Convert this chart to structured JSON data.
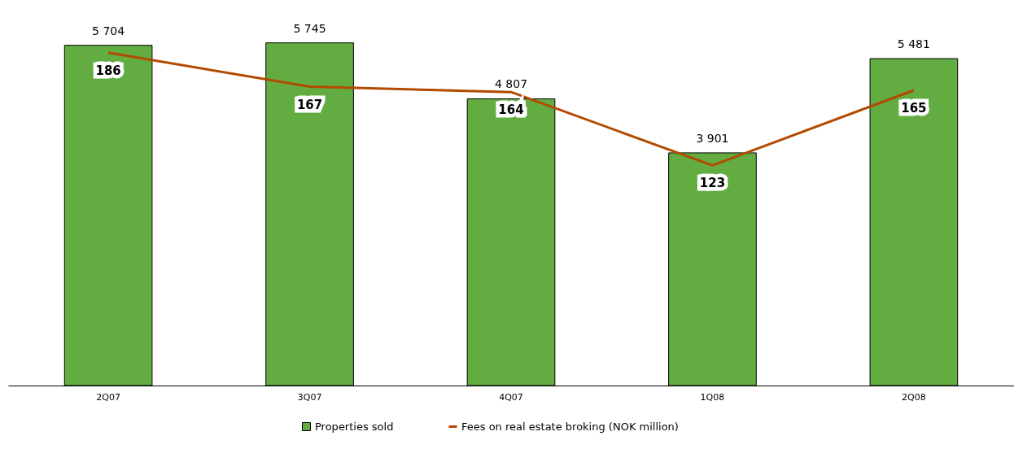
{
  "chart_data": {
    "type": "bar",
    "categories": [
      "2Q07",
      "3Q07",
      "4Q07",
      "1Q08",
      "2Q08"
    ],
    "series": [
      {
        "name": "Properties sold",
        "color": "#62ac42",
        "values": [
          5704,
          5745,
          4807,
          3901,
          5481
        ],
        "value_labels": [
          "5 704",
          "5 745",
          "4 807",
          "3 901",
          "5 481"
        ]
      },
      {
        "name": "Fees on real estate broking (NOK million)",
        "type": "line",
        "axis": "y2",
        "color": "#b34a00",
        "values": [
          186,
          167,
          164,
          123,
          165
        ],
        "value_labels": [
          "186",
          "167",
          "164",
          "123",
          "165"
        ]
      }
    ],
    "legend": "bottom",
    "grid": false
  }
}
